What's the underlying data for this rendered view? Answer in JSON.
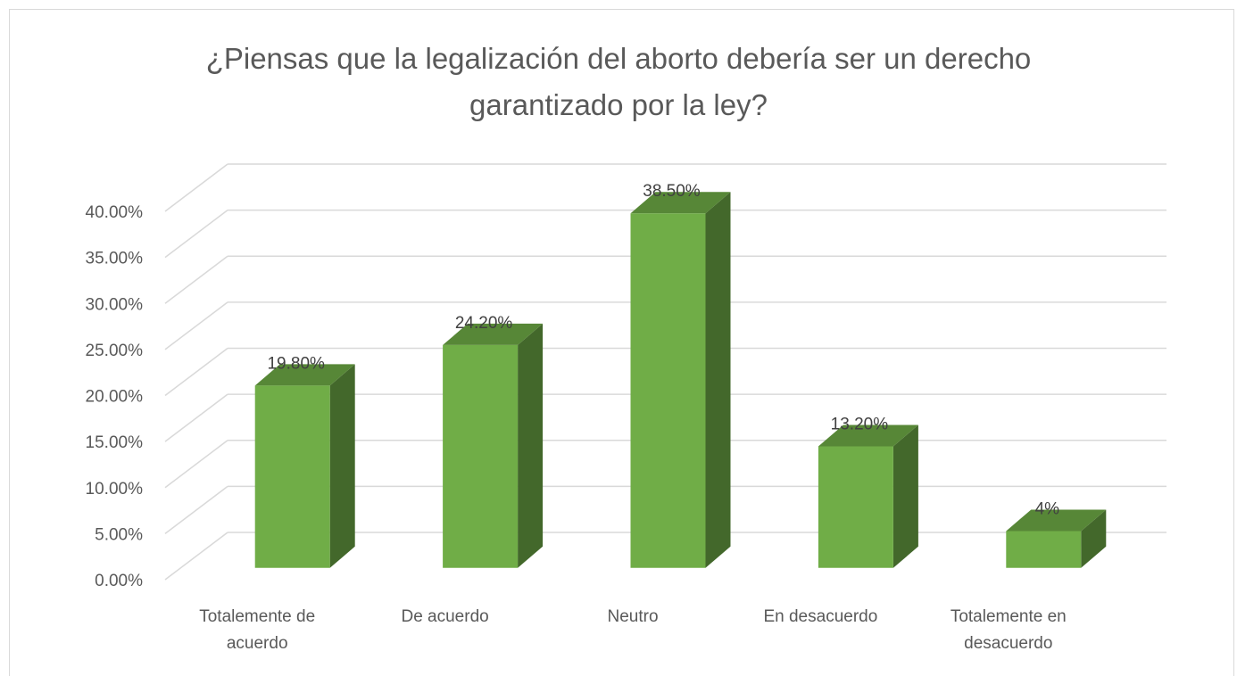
{
  "chart_data": {
    "type": "bar3d",
    "title": "¿Piensas que la legalización del aborto debería ser un derecho garantizado por la ley?",
    "categories": [
      "Totalemente de acuerdo",
      "De acuerdo",
      "Neutro",
      "En desacuerdo",
      "Totalemente en desacuerdo"
    ],
    "values": [
      19.8,
      24.2,
      38.5,
      13.2,
      4
    ],
    "value_labels": [
      "19.80%",
      "24.20%",
      "38.50%",
      "13.20%",
      "4%"
    ],
    "color": "#70ad47",
    "ylim": [
      0,
      40
    ],
    "yticks": [
      {
        "value": 0,
        "label": "0.00%"
      },
      {
        "value": 5,
        "label": "5.00%"
      },
      {
        "value": 10,
        "label": "10.00%"
      },
      {
        "value": 15,
        "label": "15.00%"
      },
      {
        "value": 20,
        "label": "20.00%"
      },
      {
        "value": 25,
        "label": "25.00%"
      },
      {
        "value": 30,
        "label": "30.00%"
      },
      {
        "value": 35,
        "label": "35.00%"
      },
      {
        "value": 40,
        "label": "40.00%"
      }
    ],
    "grid": true
  }
}
